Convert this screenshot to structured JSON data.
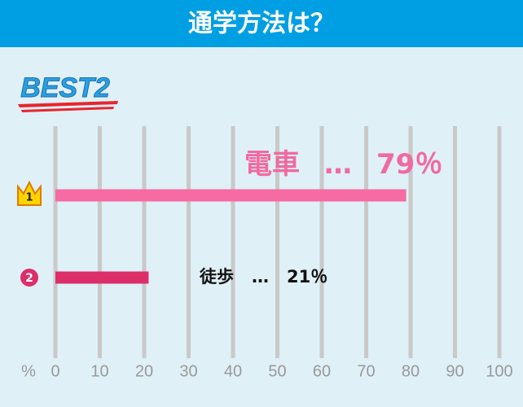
{
  "chart_data": {
    "type": "bar",
    "orientation": "horizontal",
    "title": "通学方法は？",
    "badge": "BEST2",
    "categories": [
      "電車",
      "徒歩"
    ],
    "rank_labels": [
      "1",
      "2"
    ],
    "values": [
      79,
      21
    ],
    "value_labels": [
      "79％",
      "21％"
    ],
    "separator": "…",
    "colors": [
      "#f56ba2",
      "#dc2f6a"
    ],
    "xlabel": "%",
    "xlim": [
      0,
      100
    ],
    "xticks": [
      0,
      10,
      20,
      30,
      40,
      50,
      60,
      70,
      80,
      90,
      100
    ],
    "grid": true
  }
}
